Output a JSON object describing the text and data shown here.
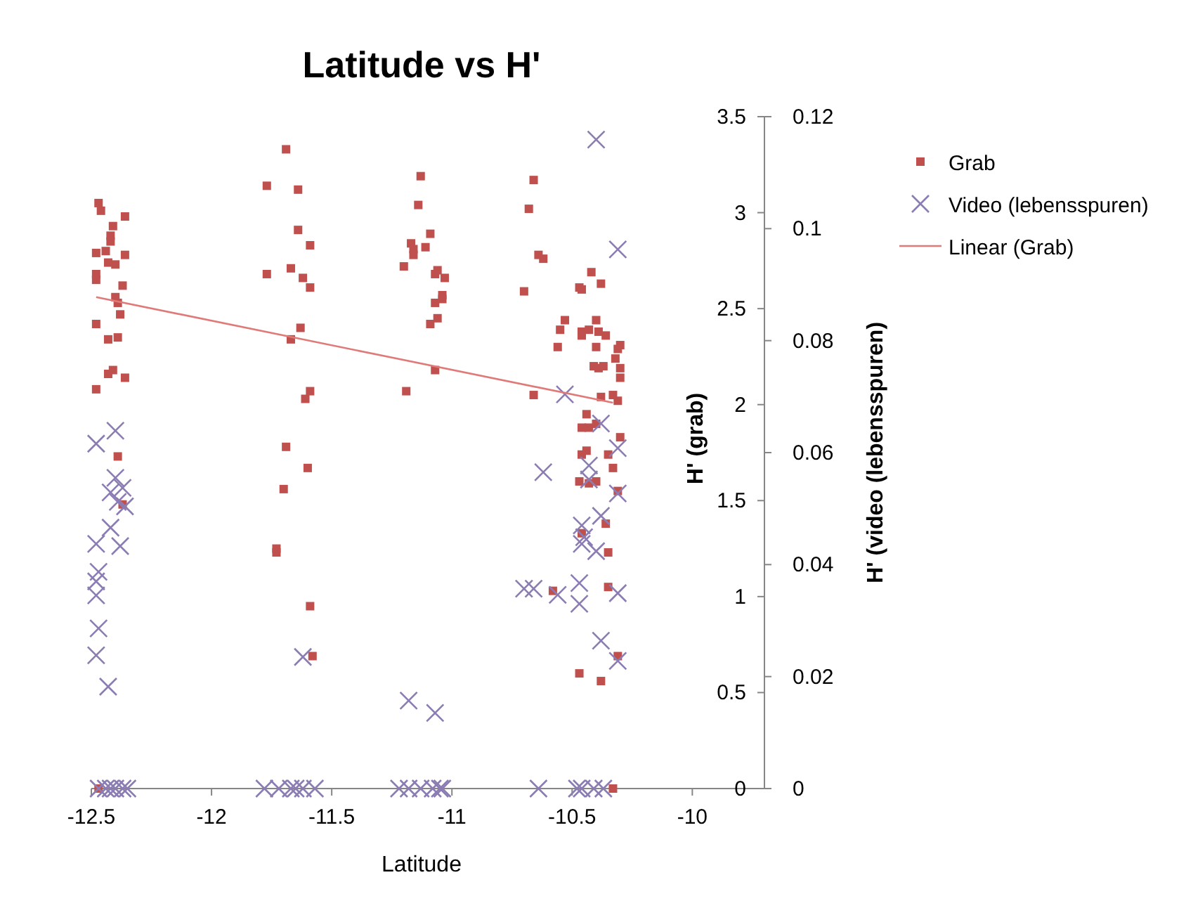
{
  "chart_data": {
    "type": "scatter",
    "title": "Latitude vs H'",
    "xlabel": "Latitude",
    "ylabel": "H' (grab)",
    "y2label": "H' (video (lebensspuren)",
    "xlim": [
      -12.5,
      -9.7
    ],
    "xticks": [
      -12.5,
      -12,
      -11.5,
      -11,
      -10.5,
      -10
    ],
    "ylim": [
      0,
      3.5
    ],
    "yticks": [
      0,
      0.5,
      1,
      1.5,
      2,
      2.5,
      3,
      3.5
    ],
    "y2lim": [
      0,
      0.12
    ],
    "y2ticks": [
      0,
      0.02,
      0.04,
      0.06,
      0.08,
      0.1,
      0.12
    ],
    "grid": false,
    "legend": "right",
    "series": [
      {
        "name": "Grab",
        "marker": "square",
        "color": "#c0504d",
        "x": [
          -12.47,
          -12.46,
          -12.36,
          -12.41,
          -12.42,
          -12.42,
          -12.48,
          -12.44,
          -12.36,
          -12.43,
          -12.4,
          -12.48,
          -12.48,
          -12.37,
          -12.4,
          -12.39,
          -12.38,
          -12.48,
          -12.43,
          -12.39,
          -12.43,
          -12.41,
          -12.36,
          -12.48,
          -12.39,
          -12.37,
          -12.47,
          -11.69,
          -11.77,
          -11.64,
          -11.64,
          -11.59,
          -11.67,
          -11.77,
          -11.62,
          -11.59,
          -11.63,
          -11.67,
          -11.59,
          -11.61,
          -11.69,
          -11.6,
          -11.7,
          -11.73,
          -11.73,
          -11.59,
          -11.58,
          -11.13,
          -11.14,
          -11.09,
          -11.17,
          -11.16,
          -11.11,
          -11.16,
          -11.2,
          -11.06,
          -11.07,
          -11.03,
          -11.04,
          -11.04,
          -11.07,
          -11.06,
          -11.09,
          -11.07,
          -11.19,
          -10.66,
          -10.68,
          -10.64,
          -10.62,
          -10.42,
          -10.7,
          -10.38,
          -10.47,
          -10.46,
          -10.53,
          -10.4,
          -10.55,
          -10.46,
          -10.43,
          -10.39,
          -10.36,
          -10.46,
          -10.56,
          -10.4,
          -10.3,
          -10.31,
          -10.32,
          -10.41,
          -10.39,
          -10.37,
          -10.3,
          -10.3,
          -10.66,
          -10.38,
          -10.33,
          -10.31,
          -10.44,
          -10.46,
          -10.43,
          -10.4,
          -10.3,
          -10.44,
          -10.46,
          -10.35,
          -10.33,
          -10.47,
          -10.43,
          -10.4,
          -10.31,
          -10.46,
          -10.36,
          -10.35,
          -10.58,
          -10.35,
          -10.31,
          -10.47,
          -10.38,
          -10.33
        ],
        "values": [
          3.05,
          3.01,
          2.98,
          2.93,
          2.88,
          2.85,
          2.79,
          2.8,
          2.78,
          2.74,
          2.73,
          2.68,
          2.65,
          2.62,
          2.56,
          2.53,
          2.47,
          2.42,
          2.34,
          2.35,
          2.16,
          2.18,
          2.14,
          2.08,
          1.73,
          1.48,
          0,
          3.33,
          3.14,
          3.12,
          2.91,
          2.83,
          2.71,
          2.68,
          2.66,
          2.61,
          2.4,
          2.34,
          2.07,
          2.03,
          1.78,
          1.67,
          1.56,
          1.25,
          1.23,
          0.95,
          0.69,
          3.19,
          3.04,
          2.89,
          2.84,
          2.81,
          2.82,
          2.78,
          2.72,
          2.7,
          2.68,
          2.66,
          2.57,
          2.55,
          2.53,
          2.45,
          2.42,
          2.18,
          2.07,
          3.17,
          3.02,
          2.78,
          2.76,
          2.69,
          2.59,
          2.63,
          2.61,
          2.6,
          2.44,
          2.44,
          2.39,
          2.38,
          2.39,
          2.38,
          2.36,
          2.36,
          2.3,
          2.3,
          2.31,
          2.29,
          2.24,
          2.2,
          2.19,
          2.2,
          2.19,
          2.14,
          2.05,
          2.04,
          2.05,
          2.02,
          1.95,
          1.88,
          1.88,
          1.9,
          1.83,
          1.76,
          1.74,
          1.74,
          1.67,
          1.6,
          1.59,
          1.6,
          1.55,
          1.33,
          1.38,
          1.23,
          1.03,
          1.05,
          0.69,
          0.6,
          0.56,
          0
        ]
      },
      {
        "name": "Video (lebensspuren)",
        "marker": "cross",
        "axis": "y2",
        "color": "#8b7db3",
        "x": [
          -12.48,
          -12.4,
          -12.4,
          -12.42,
          -12.37,
          -12.39,
          -12.36,
          -12.42,
          -12.48,
          -12.38,
          -12.47,
          -12.48,
          -12.48,
          -12.47,
          -12.48,
          -12.43,
          -12.47,
          -12.44,
          -12.42,
          -12.4,
          -12.37,
          -12.35,
          -11.62,
          -11.78,
          -11.72,
          -11.67,
          -11.65,
          -11.62,
          -11.57,
          -11.18,
          -11.07,
          -11.22,
          -11.18,
          -11.13,
          -11.08,
          -11.05,
          -11.04,
          -10.4,
          -10.31,
          -10.53,
          -10.38,
          -10.31,
          -10.62,
          -10.43,
          -10.43,
          -10.31,
          -10.38,
          -10.46,
          -10.45,
          -10.46,
          -10.4,
          -10.7,
          -10.66,
          -10.56,
          -10.47,
          -10.47,
          -10.31,
          -10.38,
          -10.31,
          -10.64,
          -10.48,
          -10.46,
          -10.41,
          -10.37
        ],
        "values": [
          0.0616,
          0.0639,
          0.0555,
          0.0529,
          0.0537,
          0.0512,
          0.0504,
          0.0466,
          0.0437,
          0.0433,
          0.0387,
          0.037,
          0.0345,
          0.0286,
          0.0238,
          0.0182,
          0,
          0,
          0,
          0,
          0,
          0,
          0.0235,
          0,
          0,
          0,
          0,
          0,
          0,
          0.0157,
          0.0135,
          0,
          0,
          0,
          0,
          0,
          0,
          0.1159,
          0.0963,
          0.0704,
          0.0652,
          0.0608,
          0.0565,
          0.0577,
          0.0552,
          0.0527,
          0.0487,
          0.047,
          0.0449,
          0.0437,
          0.0424,
          0.0357,
          0.0357,
          0.0346,
          0.0367,
          0.033,
          0.0349,
          0.0264,
          0.0228,
          0,
          0,
          0,
          0,
          0
        ]
      },
      {
        "name": "Linear (Grab)",
        "type": "line",
        "marker": "none",
        "line_style": "solid",
        "color": "#e07a78",
        "x": [
          -12.48,
          -10.33
        ],
        "values": [
          2.56,
          2.01
        ]
      }
    ]
  }
}
